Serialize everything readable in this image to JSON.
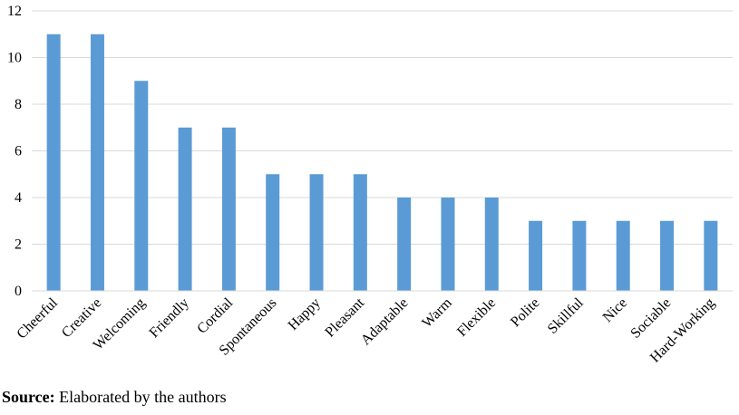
{
  "chart_data": {
    "type": "bar",
    "categories": [
      "Cheerful",
      "Creative",
      "Welcoming",
      "Friendly",
      "Cordial",
      "Spontaneous",
      "Happy",
      "Pleasant",
      "Adaptable",
      "Warm",
      "Flexible",
      "Polite",
      "Skillful",
      "Nice",
      "Sociable",
      "Hard-Working"
    ],
    "values": [
      11,
      11,
      9,
      7,
      7,
      5,
      5,
      5,
      4,
      4,
      4,
      3,
      3,
      3,
      3,
      3
    ],
    "title": "",
    "xlabel": "",
    "ylabel": "",
    "ylim": [
      0,
      12
    ],
    "yticks": [
      0,
      2,
      4,
      6,
      8,
      10,
      12
    ],
    "grid": true,
    "legend": "none",
    "bar_color": "#5b9bd5",
    "grid_color": "#d9d9d9"
  },
  "source": {
    "label": "Source:",
    "text": " Elaborated by the authors"
  }
}
